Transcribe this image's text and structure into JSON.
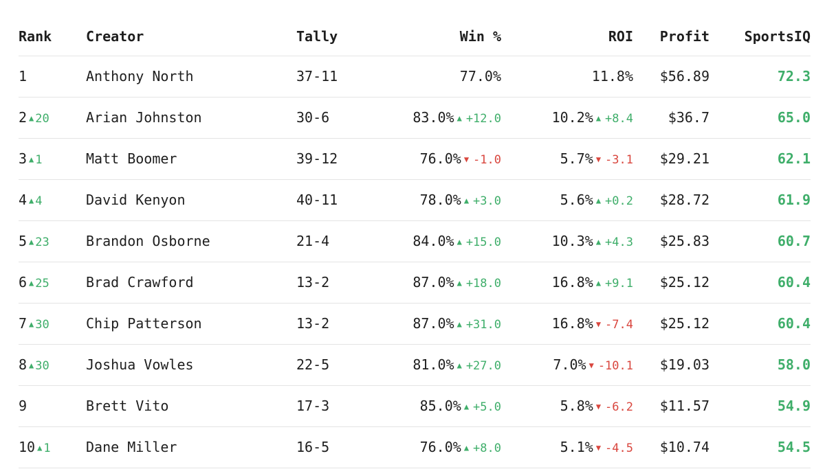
{
  "columns": {
    "rank": "Rank",
    "creator": "Creator",
    "tally": "Tally",
    "win": "Win %",
    "roi": "ROI",
    "profit": "Profit",
    "sportsiq": "SportsIQ"
  },
  "colors": {
    "up": "#3fae6a",
    "down": "#d9463e",
    "divider": "#e4e4e4"
  },
  "icons": {
    "up": "triangle-up-icon",
    "down": "triangle-down-icon"
  },
  "rows": [
    {
      "rank": "1",
      "rank_change": "",
      "creator": "Anthony North",
      "tally": "37-11",
      "win": "77.0%",
      "win_change": "",
      "win_dir": "",
      "roi": "11.8%",
      "roi_change": "",
      "roi_dir": "",
      "profit": "$56.89",
      "sportsiq": "72.3"
    },
    {
      "rank": "2",
      "rank_change": "20",
      "creator": "Arian Johnston",
      "tally": "30-6",
      "win": "83.0%",
      "win_change": "+12.0",
      "win_dir": "up",
      "roi": "10.2%",
      "roi_change": "+8.4",
      "roi_dir": "up",
      "profit": "$36.7",
      "sportsiq": "65.0"
    },
    {
      "rank": "3",
      "rank_change": "1",
      "creator": "Matt Boomer",
      "tally": "39-12",
      "win": "76.0%",
      "win_change": "-1.0",
      "win_dir": "down",
      "roi": "5.7%",
      "roi_change": "-3.1",
      "roi_dir": "down",
      "profit": "$29.21",
      "sportsiq": "62.1"
    },
    {
      "rank": "4",
      "rank_change": "4",
      "creator": "David Kenyon",
      "tally": "40-11",
      "win": "78.0%",
      "win_change": "+3.0",
      "win_dir": "up",
      "roi": "5.6%",
      "roi_change": "+0.2",
      "roi_dir": "up",
      "profit": "$28.72",
      "sportsiq": "61.9"
    },
    {
      "rank": "5",
      "rank_change": "23",
      "creator": "Brandon Osborne",
      "tally": "21-4",
      "win": "84.0%",
      "win_change": "+15.0",
      "win_dir": "up",
      "roi": "10.3%",
      "roi_change": "+4.3",
      "roi_dir": "up",
      "profit": "$25.83",
      "sportsiq": "60.7"
    },
    {
      "rank": "6",
      "rank_change": "25",
      "creator": "Brad Crawford",
      "tally": "13-2",
      "win": "87.0%",
      "win_change": "+18.0",
      "win_dir": "up",
      "roi": "16.8%",
      "roi_change": "+9.1",
      "roi_dir": "up",
      "profit": "$25.12",
      "sportsiq": "60.4"
    },
    {
      "rank": "7",
      "rank_change": "30",
      "creator": "Chip Patterson",
      "tally": "13-2",
      "win": "87.0%",
      "win_change": "+31.0",
      "win_dir": "up",
      "roi": "16.8%",
      "roi_change": "-7.4",
      "roi_dir": "down",
      "profit": "$25.12",
      "sportsiq": "60.4"
    },
    {
      "rank": "8",
      "rank_change": "30",
      "creator": "Joshua Vowles",
      "tally": "22-5",
      "win": "81.0%",
      "win_change": "+27.0",
      "win_dir": "up",
      "roi": "7.0%",
      "roi_change": "-10.1",
      "roi_dir": "down",
      "profit": "$19.03",
      "sportsiq": "58.0"
    },
    {
      "rank": "9",
      "rank_change": "",
      "creator": "Brett Vito",
      "tally": "17-3",
      "win": "85.0%",
      "win_change": "+5.0",
      "win_dir": "up",
      "roi": "5.8%",
      "roi_change": "-6.2",
      "roi_dir": "down",
      "profit": "$11.57",
      "sportsiq": "54.9"
    },
    {
      "rank": "10",
      "rank_change": "1",
      "creator": "Dane Miller",
      "tally": "16-5",
      "win": "76.0%",
      "win_change": "+8.0",
      "win_dir": "up",
      "roi": "5.1%",
      "roi_change": "-4.5",
      "roi_dir": "down",
      "profit": "$10.74",
      "sportsiq": "54.5"
    }
  ]
}
